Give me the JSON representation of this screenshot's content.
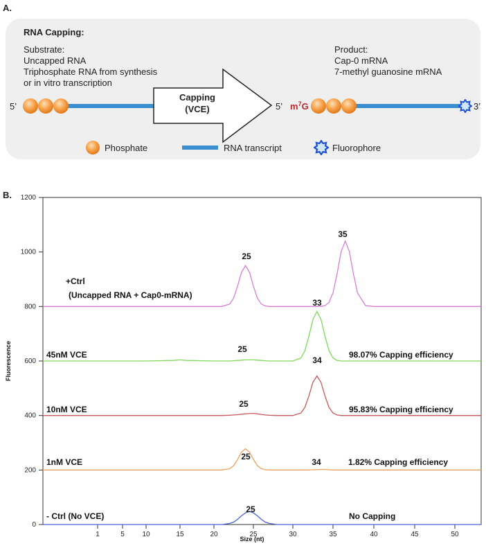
{
  "panel_a": {
    "label": "A.",
    "heading": "RNA Capping:",
    "substrate": [
      "Substrate:",
      "Uncapped RNA",
      "Triphosphate RNA from synthesis",
      "or in vitro transcription"
    ],
    "product": [
      "Product:",
      "Cap-0 mRNA",
      "7-methyl guanosine mRNA"
    ],
    "arrow": [
      "Capping",
      "(VCE)"
    ],
    "five_prime": "5’",
    "three_prime": "3’",
    "cap": [
      "m",
      "7",
      "G"
    ],
    "legend": [
      "Phosphate",
      "RNA transcript",
      "Fluorophore"
    ]
  },
  "panel_b_label": "B.",
  "chart_data": {
    "type": "line",
    "xlabel": "Size (nt)",
    "ylabel": "Fluorescence",
    "xlim": [
      -1,
      52
    ],
    "xticks": [
      1,
      5,
      10,
      15,
      20,
      25,
      30,
      35,
      40,
      45,
      50
    ],
    "ylim": [
      0,
      1200
    ],
    "yticks": [
      0,
      200,
      400,
      600,
      800,
      1000,
      1200
    ],
    "x": [
      -1,
      5,
      10,
      14,
      15,
      16,
      20,
      21,
      22,
      22.5,
      23,
      23.5,
      24,
      24.5,
      25,
      25.5,
      26,
      26.5,
      27,
      28,
      30,
      31,
      31.5,
      32,
      32.5,
      33,
      33.5,
      34,
      34.5,
      35,
      35.5,
      36,
      36.5,
      37,
      37.5,
      38,
      39,
      40,
      45,
      50,
      52
    ],
    "series": [
      {
        "name": "+Ctrl",
        "name_detail": "(Uncapped RNA + Cap0-mRNA)",
        "color": "#d77ed6",
        "peak_labels": [
          25,
          35
        ],
        "values": [
          800,
          800,
          800,
          800,
          800,
          800,
          800,
          800,
          809,
          831,
          875,
          926,
          950,
          926,
          875,
          831,
          809,
          802,
          800,
          800,
          800,
          800,
          800,
          800,
          800,
          800,
          800,
          803,
          815,
          850,
          920,
          1002,
          1040,
          1002,
          920,
          850,
          803,
          800,
          800,
          800,
          800
        ]
      },
      {
        "name": "45nM VCE",
        "color": "#7fd85a",
        "note": "98.07% Capping efficiency",
        "peak_labels": [
          25,
          33
        ],
        "values": [
          600,
          600,
          600,
          602,
          604,
          602,
          600,
          600,
          600,
          601,
          602,
          603,
          604,
          604,
          604,
          603,
          602,
          601,
          600,
          600,
          600,
          611,
          638,
          691,
          753,
          782,
          753,
          691,
          638,
          611,
          602,
          600,
          600,
          600,
          600,
          600,
          600,
          600,
          600,
          600,
          600
        ]
      },
      {
        "name": "10nM VCE",
        "color": "#c9585e",
        "note": "95.83% Capping efficiency",
        "peak_labels": [
          25,
          34
        ],
        "values": [
          400,
          400,
          400,
          400,
          400,
          400,
          400,
          400,
          401,
          402,
          403,
          405,
          406,
          407,
          408,
          406,
          404,
          402,
          401,
          400,
          400,
          409,
          430,
          472,
          522,
          545,
          522,
          472,
          430,
          409,
          402,
          400,
          400,
          400,
          400,
          400,
          400,
          400,
          400,
          400,
          400
        ]
      },
      {
        "name": "1nM VCE",
        "color": "#f0a15c",
        "note": "1.82% Capping efficiency",
        "peak_labels": [
          25,
          34
        ],
        "values": [
          200,
          200,
          200,
          200,
          200,
          200,
          200,
          200,
          205,
          216,
          239,
          266,
          278,
          266,
          239,
          216,
          205,
          201,
          200,
          200,
          200,
          200,
          200,
          200,
          201,
          201,
          202,
          202,
          201,
          200,
          200,
          200,
          200,
          200,
          200,
          200,
          200,
          200,
          200,
          200,
          200
        ]
      },
      {
        "name": "- Ctrl (No VCE)",
        "color": "#4a63d6",
        "note": "No Capping",
        "peak_labels": [
          25
        ],
        "values": [
          0,
          0,
          0,
          0,
          0,
          0,
          0,
          0,
          4,
          9,
          19,
          32,
          43,
          48,
          43,
          32,
          19,
          9,
          4,
          0,
          0,
          0,
          0,
          0,
          0,
          0,
          0,
          0,
          0,
          0,
          0,
          0,
          0,
          0,
          0,
          0,
          0,
          0,
          0,
          0,
          0
        ]
      }
    ]
  }
}
